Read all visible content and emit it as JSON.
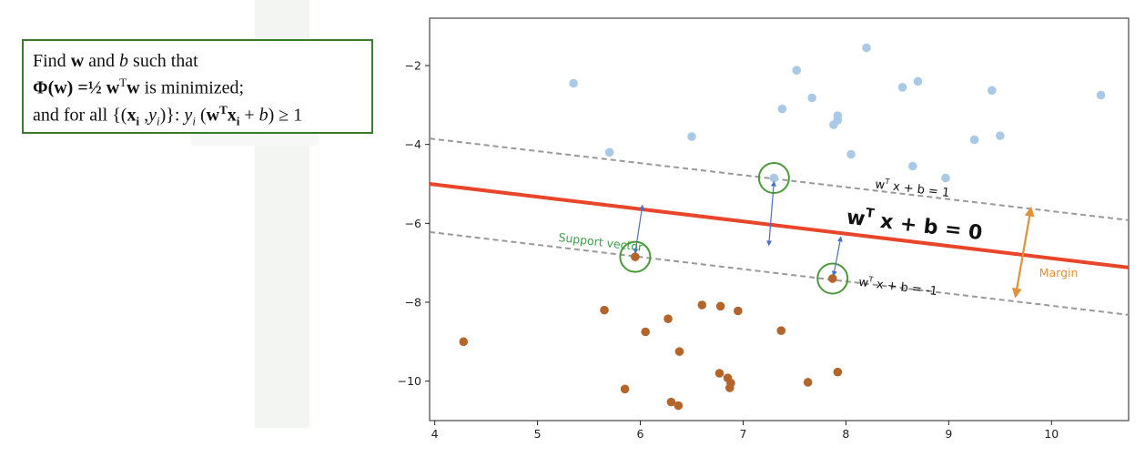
{
  "formula": {
    "line1": [
      "Find ",
      "w",
      " and ",
      "b",
      " such that"
    ],
    "line2": [
      "Φ(w)",
      " =½ ",
      "w",
      "T",
      "w",
      "  is minimized;"
    ],
    "line3": [
      "and for all {(",
      "x",
      "i",
      " ,",
      "y",
      "i",
      ")}:  ",
      "y",
      "i",
      " (",
      "w",
      "T",
      "x",
      "i",
      " + ",
      "b",
      ") ≥ 1"
    ]
  },
  "chart_data": {
    "type": "scatter",
    "title": "",
    "xlabel": "",
    "ylabel": "",
    "xlim": [
      3.95,
      10.75
    ],
    "ylim": [
      -11,
      -0.8
    ],
    "xticks": [
      4,
      5,
      6,
      7,
      8,
      9,
      10
    ],
    "yticks": [
      -2,
      -4,
      -6,
      -8,
      -10
    ],
    "grid": false,
    "series": [
      {
        "color": "#a9c9e6",
        "points": [
          [
            5.35,
            -2.45
          ],
          [
            5.7,
            -4.2
          ],
          [
            6.5,
            -3.8
          ],
          [
            7.3,
            -4.85
          ],
          [
            7.38,
            -3.1
          ],
          [
            7.52,
            -2.12
          ],
          [
            7.67,
            -2.82
          ],
          [
            7.88,
            -3.5
          ],
          [
            7.92,
            -3.27
          ],
          [
            7.92,
            -3.38
          ],
          [
            8.05,
            -4.25
          ],
          [
            8.2,
            -1.55
          ],
          [
            8.55,
            -2.55
          ],
          [
            8.65,
            -4.55
          ],
          [
            8.7,
            -2.4
          ],
          [
            8.97,
            -4.85
          ],
          [
            9.25,
            -3.88
          ],
          [
            9.42,
            -2.63
          ],
          [
            9.5,
            -3.78
          ],
          [
            10.48,
            -2.75
          ]
        ]
      },
      {
        "color": "#b5652a",
        "points": [
          [
            4.28,
            -9.0
          ],
          [
            5.65,
            -8.2
          ],
          [
            5.85,
            -10.2
          ],
          [
            5.95,
            -6.85
          ],
          [
            6.05,
            -8.75
          ],
          [
            6.27,
            -8.42
          ],
          [
            6.3,
            -10.53
          ],
          [
            6.37,
            -10.62
          ],
          [
            6.38,
            -9.25
          ],
          [
            6.6,
            -8.07
          ],
          [
            6.77,
            -9.8
          ],
          [
            6.78,
            -8.1
          ],
          [
            6.85,
            -9.92
          ],
          [
            6.87,
            -10.17
          ],
          [
            6.88,
            -10.05
          ],
          [
            6.95,
            -8.22
          ],
          [
            7.37,
            -8.72
          ],
          [
            7.63,
            -10.03
          ],
          [
            7.87,
            -7.4
          ],
          [
            7.92,
            -9.77
          ]
        ]
      }
    ],
    "decision_line": {
      "points": [
        [
          3.95,
          -5.0
        ],
        [
          10.75,
          -7.12
        ]
      ],
      "color": "#e8452a"
    },
    "margin_lines": [
      {
        "points": [
          [
            3.95,
            -3.85
          ],
          [
            10.75,
            -5.92
          ]
        ],
        "color": "#999999"
      },
      {
        "points": [
          [
            3.95,
            -6.22
          ],
          [
            10.75,
            -8.32
          ]
        ],
        "color": "#999999"
      }
    ],
    "support_vectors": [
      [
        7.3,
        -4.85
      ],
      [
        5.95,
        -6.85
      ],
      [
        7.87,
        -7.4
      ]
    ],
    "support_vector_circle_color": "#4a9a3a",
    "perpendicular_arrows": [
      {
        "from": [
          7.3,
          -4.95
        ],
        "to": [
          7.25,
          -6.55
        ]
      },
      {
        "from": [
          5.95,
          -6.75
        ],
        "to": [
          6.02,
          -5.55
        ]
      },
      {
        "from": [
          7.88,
          -7.32
        ],
        "to": [
          7.95,
          -6.35
        ]
      }
    ],
    "arrow_color": "#4a6fc4",
    "margin_arrow": {
      "from": [
        9.8,
        -5.62
      ],
      "to": [
        9.65,
        -7.85
      ],
      "color": "#e0913a"
    },
    "annotations": {
      "main_eq": {
        "base": "w",
        "sup": "T",
        "rest": " x + b = 0",
        "anchor": [
          8.0,
          -6.0
        ]
      },
      "upper_eq": {
        "base": "w",
        "sup": "T",
        "rest": " x + b = 1",
        "anchor": [
          8.28,
          -5.1
        ]
      },
      "lower_eq": {
        "base": "w",
        "sup": "T",
        "rest": " x + b = -1",
        "anchor": [
          8.12,
          -7.58
        ]
      },
      "support_vector_label": {
        "text": "Support vector",
        "color": "#3aa048",
        "anchor": [
          5.2,
          -6.45
        ]
      },
      "margin_label": {
        "text": "Margin",
        "color": "#e0913a",
        "anchor": [
          9.88,
          -7.35
        ]
      }
    }
  }
}
